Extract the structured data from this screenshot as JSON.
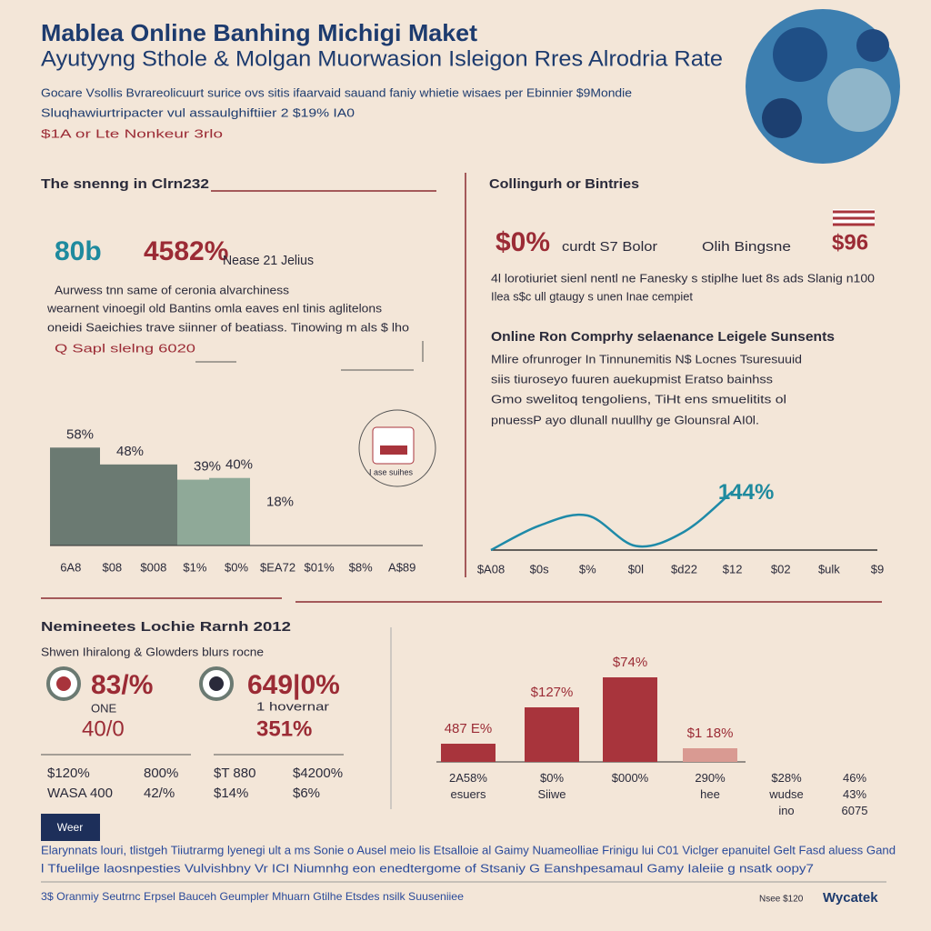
{
  "header": {
    "title": "Mablea Online Banhing Michigi Maket",
    "subtitle": "Ayutyyng Sthole & Molgan Muorwasion Isleigon Rres Alrodria Rate",
    "lines": [
      "Gocare Vsollis Bvrareolicuurt surice ovs sitis ifaarvaid sauand faniy whietie wisaes per Ebinnier $9Mondie",
      "Sluqhawiurtripacter vul assaulghiftiier 2 $19% IA0"
    ],
    "note": "$1A or Lte Nonkeur 3rlo"
  },
  "left": {
    "heading": "The snenng in Clrn232",
    "stat1": "80b",
    "stat2": "4582%",
    "stat3": "Nease 21 Jelius",
    "lines": [
      "Aurwess tnn same of ceronia alvarchiness",
      "wearnent vinoegil old Bantins omla eaves enl tinis aglitelons",
      "oneidi Saeichies trave siinner of beatiass. Tinowing m als $ lho"
    ],
    "note": "Q Sapl slelng 6020",
    "icon_label": "I ase suihes"
  },
  "right": {
    "heading": "Collingurh or Bintries",
    "stat1": "$0%",
    "stat1_label": "curdt S7 Bolor",
    "stat2_label": "Olih Bingsne",
    "stat2": "$96",
    "lines": [
      "4l lorotiuriet sienl nentl ne Fanesky s stiplhe luet 8s ads Slanig n100",
      "Ilea s$c ull gtaugy s unen Inae cempiet"
    ],
    "heading2": "Online Ron Comprhy selaenance Leigele Sunsents",
    "lines2": [
      "Mlire ofrunroger In Tinnunemitis N$ Locnes Tsuresuuid",
      "siis tiuroseyo fuuren auekupmist Eratso bainhss",
      "Gmo swelitoq tengoliens, TiHt ens smuelitits ol",
      "pnuessP ayo dlunall nuullhy ge Glounsral AI0l."
    ]
  },
  "bottom": {
    "heading": "Nemineetes Lochie Rarnh 2012",
    "subheading": "Shwen Ihiralong & Glowders blurs rocne",
    "stat1": "83/%",
    "stat1_label": "ONE",
    "stat1_sub": "40/0",
    "stat2": "649|0%",
    "stat2_label": "1 hovernar",
    "stat2_sub": "351%",
    "table": [
      [
        "$120%",
        "800%",
        "$T 880",
        "$4200%"
      ],
      [
        "WASA 400",
        "42/%",
        "$14%",
        "$6%"
      ]
    ],
    "button": "Weer"
  },
  "footer": {
    "lines": [
      "Elarynnats louri, tlistgeh Tiiutrarmg lyenegi ult a ms Sonie o Ausel meio lis Etsalloie al Gaimy Nuameolliae Frinigu lui C01 Viclger epanuitel Gelt Fasd aluess Gand",
      "l Tfuelilge laosnpesties Vulvishbny Vr ICI Niumnhg eon enedtergome of Stsaniy G Eanshpesamaul Gamy Ialeiie g nsatk oopy7"
    ],
    "small": "3$ Oranmiy Seutrnc Erpsel Bauceh Geumpler Mhuarn Gtilhe Etsdes nsilk Suuseniiee",
    "tag": "Nsee $120",
    "logo": "Wycatek"
  },
  "chart_data": [
    {
      "type": "bar",
      "values": [
        58,
        48,
        39,
        40,
        18
      ],
      "value_labels": [
        "58%",
        "48%",
        "39%",
        "40%",
        "18%"
      ],
      "colors": [
        "#6b7a72",
        "#6b7a72",
        "#8fa998",
        "#8fa998",
        "#8fa998"
      ],
      "ylim": [
        0,
        70
      ],
      "axis_labels": [
        "6A8",
        "$08",
        "$008",
        "$1%",
        "$0%",
        "$EA72",
        "$01%",
        "$8%",
        "A$89"
      ]
    },
    {
      "type": "line",
      "categories": [
        "$A08",
        "$0s",
        "$%",
        "$0l",
        "$d22",
        "$12",
        "$02",
        "$ulk",
        "$9"
      ],
      "values": [
        0,
        60,
        85,
        10,
        45,
        144,
        null,
        null,
        null
      ],
      "color": "#1e8aa8",
      "ylim": [
        0,
        190
      ],
      "annotation": "144%"
    },
    {
      "type": "bar",
      "categories": [
        "2A58% esuers",
        "$0% Siiwe",
        "$000%",
        "290% hee",
        "$28% wudse ino",
        "46% 43% 6075"
      ],
      "values": [
        20,
        60,
        93,
        15,
        null,
        null
      ],
      "colors": [
        "#a8343c",
        "#a8343c",
        "#a8343c",
        "#d99a92",
        null,
        null
      ],
      "ylim": [
        0,
        100
      ],
      "annotations": [
        "487 E%",
        "$127%",
        "$74%",
        "$1 18%",
        null,
        null
      ]
    }
  ]
}
